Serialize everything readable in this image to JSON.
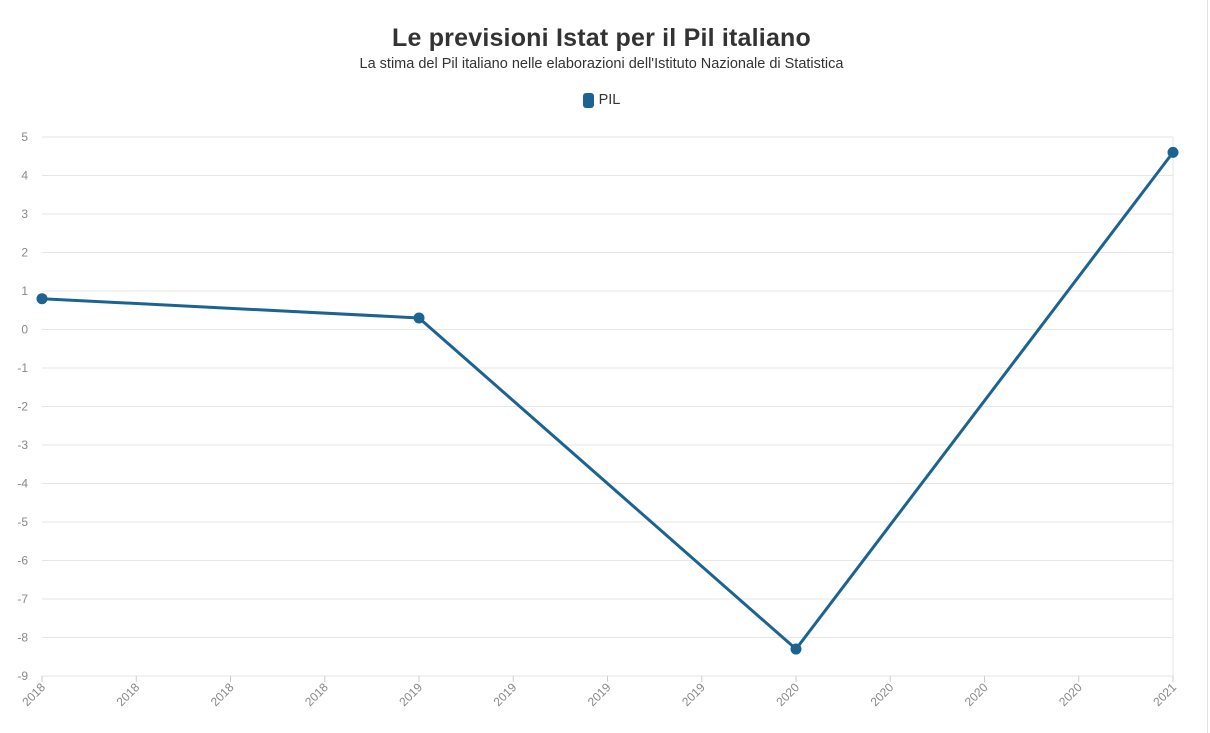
{
  "chart_data": {
    "type": "line",
    "title": "Le previsioni Istat per il Pil italiano",
    "subtitle": "La stima del Pil italiano nelle elaborazioni dell'Istituto Nazionale di Statistica",
    "xlabel": "",
    "ylabel": "",
    "ylim": [
      -9,
      5
    ],
    "yticks": [
      5,
      4,
      3,
      2,
      1,
      0,
      -1,
      -2,
      -3,
      -4,
      -5,
      -6,
      -7,
      -8,
      -9
    ],
    "xticks": [
      "2018",
      "2018",
      "2018",
      "2018",
      "2019",
      "2019",
      "2019",
      "2019",
      "2020",
      "2020",
      "2020",
      "2020",
      "2021"
    ],
    "grid": true,
    "legend_position": "top-center",
    "series": [
      {
        "name": "PIL",
        "color": "#1d6391",
        "points": [
          {
            "x": "2018",
            "y": 0.8
          },
          {
            "x": "2019",
            "y": 0.3
          },
          {
            "x": "2020",
            "y": -8.3
          },
          {
            "x": "2021",
            "y": 4.6
          }
        ]
      }
    ]
  }
}
